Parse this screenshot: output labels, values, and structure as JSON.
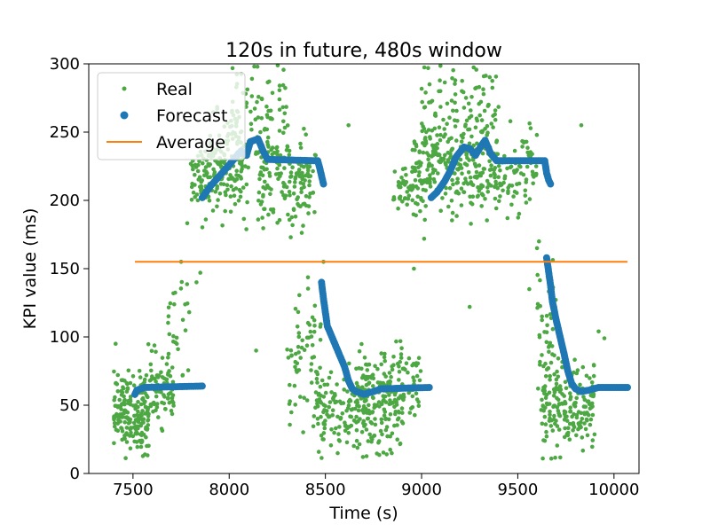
{
  "chart_data": {
    "type": "scatter",
    "title": "120s in future, 480s window",
    "xlabel": "Time (s)",
    "ylabel": "KPI value (ms)",
    "xlim": [
      7270,
      10130
    ],
    "ylim": [
      0,
      300
    ],
    "xticks": [
      7500,
      8000,
      8500,
      9000,
      9500,
      10000
    ],
    "yticks": [
      0,
      50,
      100,
      150,
      200,
      250,
      300
    ],
    "grid": false,
    "legend_position": "top-left",
    "colors": {
      "real": "#4da843",
      "forecast": "#1f77b4",
      "average": "#ff7f0e"
    },
    "series": [
      {
        "name": "Real",
        "kind": "scatter-small",
        "clusters": [
          {
            "x": [
              7400,
              7580
            ],
            "y_center": 45,
            "y_spread": 14,
            "count": 190
          },
          {
            "x": [
              7580,
              7720
            ],
            "y_center": 62,
            "y_spread": 12,
            "count": 80
          },
          {
            "x": [
              7680,
              7800
            ],
            "y_center": 100,
            "y_spread": 30,
            "count": 30
          },
          {
            "x": [
              7800,
              7900
            ],
            "y_center": 215,
            "y_spread": 12,
            "count": 60
          },
          {
            "x": [
              7900,
              8100
            ],
            "y_center": 225,
            "y_spread": 18,
            "count": 140
          },
          {
            "x": [
              8000,
              8300
            ],
            "y_center": 265,
            "y_spread": 30,
            "count": 110
          },
          {
            "x": [
              8150,
              8450
            ],
            "y_center": 215,
            "y_spread": 16,
            "count": 150
          },
          {
            "x": [
              8300,
              8480
            ],
            "y_center": 80,
            "y_spread": 25,
            "count": 70
          },
          {
            "x": [
              8450,
              8900
            ],
            "y_center": 45,
            "y_spread": 16,
            "count": 240
          },
          {
            "x": [
              8650,
              9000
            ],
            "y_center": 65,
            "y_spread": 14,
            "count": 120
          },
          {
            "x": [
              8850,
              9000
            ],
            "y_center": 210,
            "y_spread": 8,
            "count": 50
          },
          {
            "x": [
              8950,
              9250
            ],
            "y_center": 222,
            "y_spread": 14,
            "count": 150
          },
          {
            "x": [
              9000,
              9400
            ],
            "y_center": 265,
            "y_spread": 28,
            "count": 160
          },
          {
            "x": [
              9250,
              9600
            ],
            "y_center": 220,
            "y_spread": 14,
            "count": 150
          },
          {
            "x": [
              9600,
              9700
            ],
            "y_center": 95,
            "y_spread": 28,
            "count": 40
          },
          {
            "x": [
              9620,
              9900
            ],
            "y_center": 48,
            "y_spread": 16,
            "count": 200
          }
        ],
        "points": [
          [
            7410,
            95
          ],
          [
            7750,
            155
          ],
          [
            7830,
            140
          ],
          [
            7850,
            147
          ],
          [
            8140,
            90
          ],
          [
            8170,
            199
          ],
          [
            8320,
            173
          ],
          [
            8490,
            155
          ],
          [
            8960,
            150
          ],
          [
            9250,
            122
          ],
          [
            9600,
            165
          ],
          [
            9610,
            170
          ],
          [
            9560,
            135
          ],
          [
            9920,
            104
          ],
          [
            9950,
            99
          ],
          [
            9830,
            255
          ],
          [
            8620,
            255
          ]
        ]
      },
      {
        "name": "Forecast",
        "kind": "scatter-large",
        "segments": [
          {
            "points": [
              [
                7510,
                58
              ],
              [
                7520,
                61
              ],
              [
                7540,
                62
              ],
              [
                7560,
                63
              ],
              [
                7860,
                64
              ]
            ]
          },
          {
            "points": [
              [
                7860,
                202
              ],
              [
                7900,
                210
              ],
              [
                7950,
                218
              ],
              [
                8000,
                226
              ],
              [
                8060,
                236
              ],
              [
                8090,
                233
              ],
              [
                8110,
                243
              ],
              [
                8150,
                245
              ],
              [
                8180,
                235
              ],
              [
                8200,
                230
              ],
              [
                8460,
                229
              ],
              [
                8470,
                224
              ],
              [
                8480,
                218
              ],
              [
                8490,
                212
              ]
            ]
          },
          {
            "points": [
              [
                8480,
                140
              ],
              [
                8490,
                128
              ],
              [
                8500,
                118
              ],
              [
                8510,
                108
              ],
              [
                8540,
                98
              ],
              [
                8570,
                88
              ],
              [
                8600,
                78
              ],
              [
                8620,
                68
              ],
              [
                8640,
                62
              ],
              [
                8660,
                60
              ],
              [
                8700,
                58
              ],
              [
                8750,
                60
              ],
              [
                8790,
                62
              ],
              [
                9040,
                63
              ]
            ]
          },
          {
            "points": [
              [
                9050,
                202
              ],
              [
                9080,
                206
              ],
              [
                9120,
                214
              ],
              [
                9150,
                222
              ],
              [
                9180,
                232
              ],
              [
                9220,
                239
              ],
              [
                9250,
                238
              ],
              [
                9280,
                233
              ],
              [
                9310,
                240
              ],
              [
                9330,
                244
              ],
              [
                9360,
                234
              ],
              [
                9390,
                229
              ],
              [
                9640,
                229
              ],
              [
                9650,
                220
              ],
              [
                9660,
                215
              ],
              [
                9670,
                212
              ]
            ]
          },
          {
            "points": [
              [
                9650,
                158
              ],
              [
                9660,
                148
              ],
              [
                9670,
                138
              ],
              [
                9680,
                126
              ],
              [
                9700,
                112
              ],
              [
                9720,
                100
              ],
              [
                9740,
                88
              ],
              [
                9760,
                75
              ],
              [
                9780,
                66
              ],
              [
                9800,
                62
              ],
              [
                9830,
                60
              ],
              [
                9870,
                61
              ],
              [
                9920,
                63
              ],
              [
                10070,
                63
              ]
            ]
          }
        ]
      },
      {
        "name": "Average",
        "kind": "line",
        "x": [
          7510,
          10070
        ],
        "y": [
          155,
          155
        ]
      }
    ]
  }
}
